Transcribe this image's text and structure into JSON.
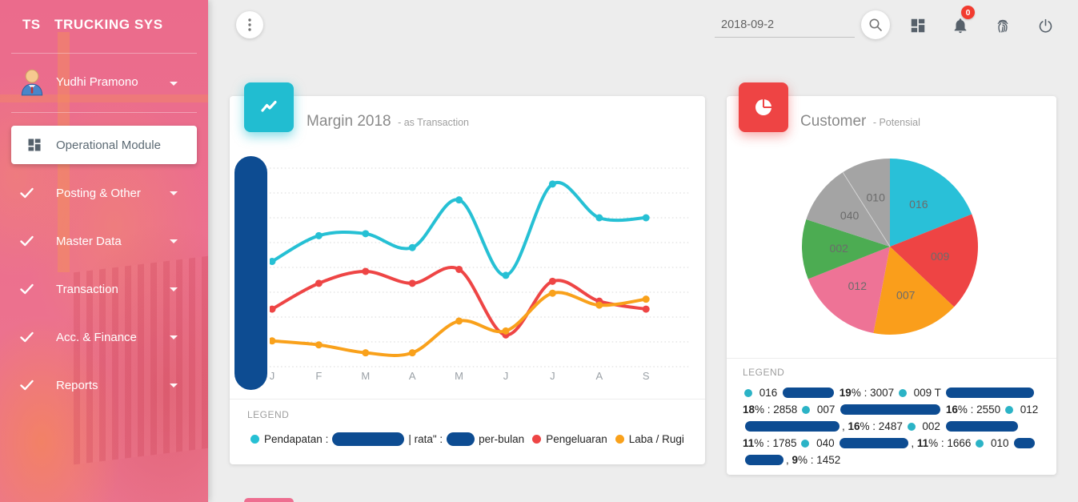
{
  "app": {
    "logo_short": "TS",
    "logo_title": "TRUCKING SYS"
  },
  "sidebar": {
    "user": {
      "name": "Yudhi Pramono"
    },
    "active_item": {
      "label": "Operational Module"
    },
    "items": [
      {
        "label": "Posting & Other"
      },
      {
        "label": "Master Data"
      },
      {
        "label": "Transaction"
      },
      {
        "label": "Acc. & Finance"
      },
      {
        "label": "Reports"
      }
    ]
  },
  "topbar": {
    "date_value": "2018-09-2",
    "notification_count": "0"
  },
  "margin_card": {
    "title": "Margin 2018",
    "subtitle": "- as Transaction",
    "legend_heading": "LEGEND",
    "legend": {
      "pendapatan_label": "Pendapatan :",
      "rata_label": "| rata\" :",
      "per_bulan_label": "per-bulan",
      "pengeluaran_label": "Pengeluaran",
      "laba_label": "Laba / Rugi"
    }
  },
  "customer_card": {
    "title": "Customer",
    "subtitle": "- Potensial",
    "legend_heading": "LEGEND"
  },
  "chart_data": [
    {
      "type": "line",
      "title": "Margin 2018 - as Transaction",
      "categories": [
        "J",
        "F",
        "M",
        "A",
        "M",
        "J",
        "J",
        "A",
        "S"
      ],
      "series": [
        {
          "name": "Pendapatan",
          "color": "#26c0d4",
          "values": [
            53,
            66,
            67,
            60,
            84,
            46,
            92,
            75,
            75
          ]
        },
        {
          "name": "Pengeluaran",
          "color": "#ee4545",
          "values": [
            29,
            42,
            48,
            42,
            49,
            16,
            43,
            33,
            29
          ]
        },
        {
          "name": "Laba / Rugi",
          "color": "#f9a11b",
          "values": [
            13,
            11,
            7,
            7,
            23,
            18,
            37,
            31,
            34
          ]
        }
      ],
      "ylim": [
        0,
        100
      ],
      "grid": "dotted-horizontal",
      "y_axis_labels_redacted": true,
      "legend_position": "bottom"
    },
    {
      "type": "pie",
      "title": "Customer - Potensial",
      "slices": [
        {
          "label": "016",
          "pct": 19,
          "value": 3007,
          "color": "#29c0d8"
        },
        {
          "label": "009",
          "pct": 18,
          "value": 2858,
          "color": "#ee4444"
        },
        {
          "label": "007",
          "pct": 16,
          "value": 2550,
          "color": "#fa9e1b"
        },
        {
          "label": "012",
          "pct": 16,
          "value": 2487,
          "color": "#ee7396"
        },
        {
          "label": "002",
          "pct": 11,
          "value": 1785,
          "color": "#4cac52"
        },
        {
          "label": "040",
          "pct": 11,
          "value": 1666,
          "color": "#a4a4a4"
        },
        {
          "label": "010",
          "pct": 9,
          "value": 1452,
          "color": "#a4a4a4"
        }
      ],
      "legend_position": "bottom"
    }
  ],
  "pie_legend": [
    {
      "label": "016",
      "redact_w": 64,
      "comma": false,
      "pct": "19",
      "value": "3007"
    },
    {
      "label": "009 T",
      "redact_w": 110,
      "comma": false,
      "pct": "18",
      "value": "2858"
    },
    {
      "label": "007",
      "redact_w": 125,
      "comma": false,
      "pct": "16",
      "value": "2550"
    },
    {
      "label": "012",
      "redact_w": 118,
      "comma": true,
      "pct": "16",
      "value": "2487"
    },
    {
      "label": "002",
      "redact_w": 90,
      "comma": false,
      "pct": "11",
      "value": "1785"
    },
    {
      "label": "040",
      "redact_w": 86,
      "comma": true,
      "pct": "11",
      "value": "1666"
    },
    {
      "label": "010",
      "redact_w": 26,
      "redact_w2": 48,
      "comma": true,
      "pct": "9",
      "value": "1452"
    }
  ],
  "colors": {
    "sidebar_pink": "#ec6d8d",
    "accent_teal": "#21bdd1",
    "accent_red": "#ee4444",
    "redaction_navy": "#0d4c92",
    "badge_red": "#f23b2f",
    "page_bg": "#ededed"
  },
  "icons": {
    "menu-dots-icon": "vertical-ellipsis",
    "search-icon": "magnifier",
    "apps-icon": "dashboard-grid",
    "bell-icon": "notifications-bell",
    "fingerprint-icon": "fingerprint",
    "power-icon": "power",
    "trending-up-icon": "zigzag-line",
    "pie-chart-icon": "pie",
    "person-icon": "user-avatar",
    "check-icon": "checkmark",
    "caret-down-icon": "triangle-down"
  }
}
